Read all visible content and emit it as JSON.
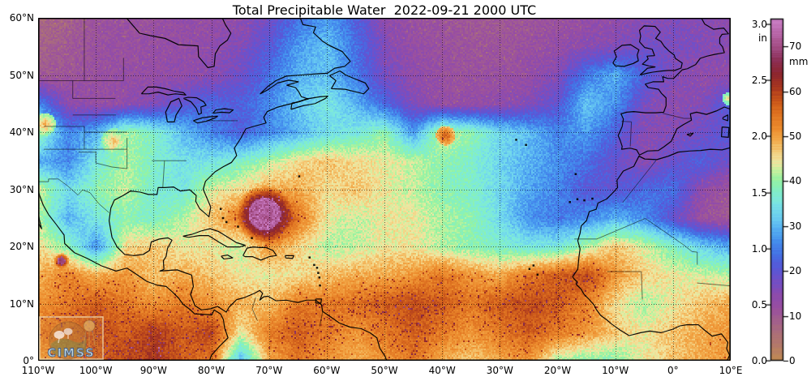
{
  "figure": {
    "title": "Total Precipitable Water  2022-09-21 2000 UTC",
    "logo_text": "CIMSS"
  },
  "axes": {
    "lat_ticks": [
      {
        "label": "60°N",
        "value": 60
      },
      {
        "label": "50°N",
        "value": 50
      },
      {
        "label": "40°N",
        "value": 40
      },
      {
        "label": "30°N",
        "value": 30
      },
      {
        "label": "20°N",
        "value": 20
      },
      {
        "label": "10°N",
        "value": 10
      },
      {
        "label": "0°",
        "value": 0
      }
    ],
    "lon_ticks": [
      {
        "label": "110°W",
        "value": -110
      },
      {
        "label": "100°W",
        "value": -100
      },
      {
        "label": "90°W",
        "value": -90
      },
      {
        "label": "80°W",
        "value": -80
      },
      {
        "label": "70°W",
        "value": -70
      },
      {
        "label": "60°W",
        "value": -60
      },
      {
        "label": "50°W",
        "value": -50
      },
      {
        "label": "40°W",
        "value": -40
      },
      {
        "label": "30°W",
        "value": -30
      },
      {
        "label": "20°W",
        "value": -20
      },
      {
        "label": "10°W",
        "value": -10
      },
      {
        "label": "0°",
        "value": 0
      },
      {
        "label": "10°E",
        "value": 10
      }
    ]
  },
  "colorbar": {
    "unit_left": "in",
    "unit_right": "mm",
    "range_mm": [
      0,
      77.5
    ],
    "ticks_in": [
      {
        "label": "3.0",
        "value": 3.0
      },
      {
        "label": "2.5",
        "value": 2.5
      },
      {
        "label": "2.0",
        "value": 2.0
      },
      {
        "label": "1.5",
        "value": 1.5
      },
      {
        "label": "1.0",
        "value": 1.0
      },
      {
        "label": "0.5",
        "value": 0.5
      },
      {
        "label": "0.0",
        "value": 0.0
      }
    ],
    "ticks_mm": [
      {
        "label": "70",
        "value": 70
      },
      {
        "label": "60",
        "value": 60
      },
      {
        "label": "50",
        "value": 50
      },
      {
        "label": "40",
        "value": 40
      },
      {
        "label": "30",
        "value": 30
      },
      {
        "label": "20",
        "value": 20
      },
      {
        "label": "10",
        "value": 10
      },
      {
        "label": "0",
        "value": 0
      }
    ]
  },
  "chart_data": {
    "type": "heatmap",
    "title": "Total Precipitable Water  2022-09-21 2000 UTC",
    "units": "mm",
    "lon_range": [
      -110,
      10
    ],
    "lat_range": [
      0,
      60
    ],
    "grid_lats": [
      60,
      55,
      50,
      45,
      40,
      35,
      30,
      25,
      20,
      15,
      10,
      5,
      0
    ],
    "grid_lons": [
      -110,
      -105,
      -100,
      -95,
      -90,
      -85,
      -80,
      -75,
      -70,
      -65,
      -60,
      -55,
      -50,
      -45,
      -40,
      -35,
      -30,
      -25,
      -20,
      -15,
      -10,
      -5,
      0,
      5,
      10
    ],
    "values_mm": [
      [
        7,
        9,
        11,
        12,
        12,
        13,
        13,
        14,
        18,
        24,
        28,
        22,
        14,
        12,
        11,
        10,
        10,
        11,
        12,
        13,
        14,
        15,
        16,
        15,
        14
      ],
      [
        8,
        10,
        12,
        12,
        13,
        13,
        14,
        16,
        21,
        28,
        32,
        24,
        16,
        13,
        12,
        11,
        11,
        12,
        13,
        15,
        16,
        18,
        17,
        16,
        15
      ],
      [
        10,
        11,
        12,
        13,
        13,
        14,
        15,
        18,
        24,
        30,
        31,
        25,
        17,
        14,
        12,
        12,
        12,
        13,
        16,
        25,
        30,
        22,
        16,
        14,
        14
      ],
      [
        26,
        15,
        13,
        14,
        16,
        20,
        23,
        22,
        26,
        32,
        36,
        30,
        23,
        16,
        13,
        13,
        14,
        16,
        20,
        32,
        27,
        17,
        14,
        16,
        22
      ],
      [
        40,
        26,
        30,
        42,
        38,
        31,
        26,
        22,
        26,
        30,
        34,
        36,
        40,
        28,
        44,
        40,
        34,
        31,
        26,
        28,
        22,
        15,
        16,
        18,
        21
      ],
      [
        30,
        26,
        36,
        42,
        38,
        35,
        35,
        38,
        42,
        46,
        48,
        46,
        45,
        43,
        40,
        38,
        33,
        30,
        27,
        24,
        19,
        15,
        19,
        22,
        18
      ],
      [
        44,
        34,
        40,
        43,
        37,
        36,
        44,
        46,
        50,
        50,
        46,
        48,
        45,
        43,
        40,
        38,
        34,
        29,
        26,
        21,
        20,
        23,
        24,
        14,
        11
      ],
      [
        42,
        30,
        36,
        40,
        38,
        42,
        48,
        55,
        70,
        55,
        45,
        43,
        45,
        45,
        42,
        40,
        34,
        27,
        25,
        26,
        30,
        27,
        19,
        12,
        10
      ],
      [
        46,
        40,
        27,
        46,
        48,
        45,
        45,
        43,
        52,
        47,
        42,
        43,
        45,
        45,
        42,
        40,
        38,
        36,
        36,
        42,
        48,
        44,
        39,
        33,
        29
      ],
      [
        50,
        54,
        50,
        52,
        48,
        50,
        48,
        45,
        45,
        46,
        48,
        50,
        50,
        52,
        55,
        52,
        50,
        55,
        58,
        60,
        52,
        47,
        45,
        44,
        42
      ],
      [
        52,
        55,
        58,
        55,
        52,
        55,
        52,
        50,
        48,
        55,
        55,
        56,
        58,
        60,
        58,
        55,
        58,
        60,
        58,
        54,
        46,
        42,
        45,
        48,
        50
      ],
      [
        55,
        58,
        60,
        58,
        62,
        58,
        61,
        45,
        55,
        58,
        55,
        52,
        55,
        58,
        55,
        52,
        55,
        58,
        55,
        52,
        48,
        45,
        48,
        50,
        52
      ],
      [
        50,
        55,
        58,
        60,
        62,
        58,
        55,
        30,
        50,
        55,
        52,
        50,
        52,
        55,
        50,
        48,
        50,
        52,
        42,
        40,
        40,
        45,
        48,
        50,
        52
      ]
    ],
    "features": [
      {
        "name": "hurricane-fiona",
        "lon": -70.9,
        "lat": 25.8,
        "peak_mm": 73,
        "type": "vortex",
        "r1": 20,
        "r2": 35,
        "ring_mm": 66
      },
      {
        "name": "small-vortex-pacific",
        "lon": -106.1,
        "lat": 17.6,
        "peak_mm": 70,
        "type": "vortex",
        "r1": 5,
        "r2": 10,
        "ring_mm": 60
      },
      {
        "name": "midlat-moisture-core",
        "lon": -39.5,
        "lat": 39.5,
        "peak_mm": 58,
        "type": "boost",
        "r1": 12
      },
      {
        "name": "plains-moist-band",
        "lon": -97,
        "lat": 38.5,
        "peak_mm": 49,
        "type": "boost",
        "r1": 16
      },
      {
        "name": "west-us-moisture",
        "lon": -109,
        "lat": 41.5,
        "peak_mm": 50,
        "type": "boost",
        "r1": 14
      },
      {
        "name": "alps-patch",
        "lon": 9.5,
        "lat": 46,
        "peak_mm": 47,
        "type": "boost",
        "r1": 8
      }
    ],
    "colormap": [
      {
        "mm": 0,
        "color": "#c18a55"
      },
      {
        "mm": 3,
        "color": "#b67d66"
      },
      {
        "mm": 6,
        "color": "#ac6f79"
      },
      {
        "mm": 9,
        "color": "#a25f8e"
      },
      {
        "mm": 12,
        "color": "#9a4fa0"
      },
      {
        "mm": 15,
        "color": "#8a4bb0"
      },
      {
        "mm": 18,
        "color": "#7050c8"
      },
      {
        "mm": 21,
        "color": "#5858d8"
      },
      {
        "mm": 24,
        "color": "#4470e4"
      },
      {
        "mm": 27,
        "color": "#4490ee"
      },
      {
        "mm": 30,
        "color": "#58b2f2"
      },
      {
        "mm": 33,
        "color": "#6ed2f0"
      },
      {
        "mm": 36,
        "color": "#7ce8e0"
      },
      {
        "mm": 39,
        "color": "#84f0c0"
      },
      {
        "mm": 41,
        "color": "#96f2a2"
      },
      {
        "mm": 43,
        "color": "#c2f29e"
      },
      {
        "mm": 45,
        "color": "#f0e6a2"
      },
      {
        "mm": 47,
        "color": "#f4d182"
      },
      {
        "mm": 50,
        "color": "#f2a848"
      },
      {
        "mm": 53,
        "color": "#ec8c2e"
      },
      {
        "mm": 56,
        "color": "#dd7020"
      },
      {
        "mm": 59,
        "color": "#c8551a"
      },
      {
        "mm": 62,
        "color": "#a83620"
      },
      {
        "mm": 65,
        "color": "#8c2630"
      },
      {
        "mm": 68,
        "color": "#8c2f55"
      },
      {
        "mm": 71,
        "color": "#a04a80"
      },
      {
        "mm": 74,
        "color": "#b866a8"
      },
      {
        "mm": 77.5,
        "color": "#cc80c8"
      }
    ]
  }
}
